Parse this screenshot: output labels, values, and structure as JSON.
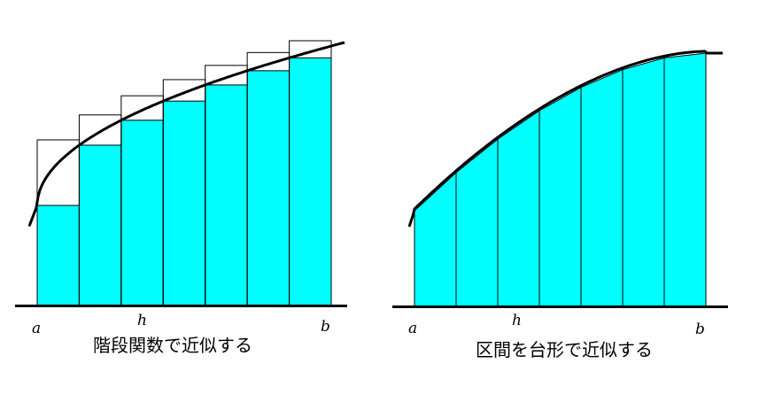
{
  "colors": {
    "fill": "#00ffff",
    "stroke": "#000000",
    "background": "#ffffff"
  },
  "diagrams": [
    {
      "id": "step",
      "method": "step-rectangles",
      "labels": {
        "a": "a",
        "h": "h",
        "b": "b"
      },
      "caption": "階段関数で近似する",
      "strips": 7
    },
    {
      "id": "trapezoid",
      "method": "trapezoids",
      "labels": {
        "a": "a",
        "h": "h",
        "b": "b"
      },
      "caption": "区間を台形で近似する",
      "strips": 7
    }
  ]
}
